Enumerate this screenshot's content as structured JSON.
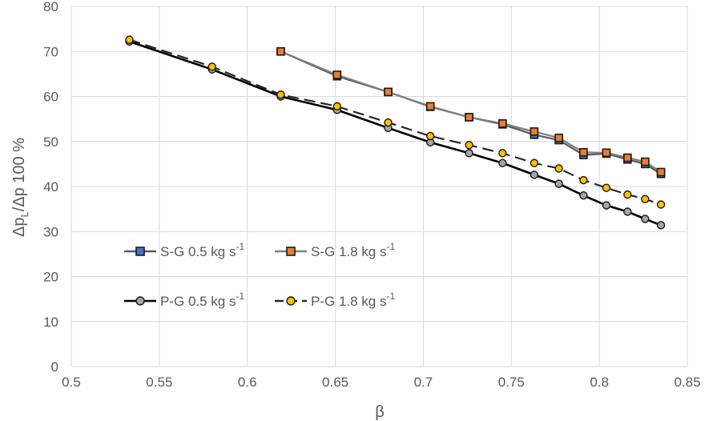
{
  "chart_data": {
    "type": "line",
    "xlabel": "β",
    "ylabel_parts": [
      "Δp",
      "L",
      "/Δp 100 %"
    ],
    "xlim": [
      0.5,
      0.85
    ],
    "ylim": [
      0,
      80
    ],
    "xticks": [
      0.5,
      0.55,
      0.6,
      0.65,
      0.7,
      0.75,
      0.8,
      0.85
    ],
    "xtick_labels": [
      "0.5",
      "0.55",
      "0.6",
      "0.65",
      "0.7",
      "0.75",
      "0.8",
      "0.85"
    ],
    "yticks": [
      0,
      10,
      20,
      30,
      40,
      50,
      60,
      70,
      80
    ],
    "ytick_labels": [
      "0",
      "10",
      "20",
      "30",
      "40",
      "50",
      "60",
      "70",
      "80"
    ],
    "grid": true,
    "legend_position": "lower-left",
    "series": [
      {
        "name": "S-G 0.5 kg s",
        "name_sup": "-1",
        "line_color": "#595959",
        "marker_fill": "#4472c4",
        "marker": "square",
        "dashed": false,
        "x": [
          0.619,
          0.651,
          0.68,
          0.704,
          0.726,
          0.745,
          0.763,
          0.777,
          0.791,
          0.804,
          0.816,
          0.826,
          0.835
        ],
        "y": [
          70,
          64.5,
          61,
          57.7,
          55.4,
          53.8,
          51.5,
          50.3,
          47,
          47.3,
          46,
          45,
          42.8
        ]
      },
      {
        "name": "S-G 1.8 kg  s",
        "name_sup": "-1",
        "line_color": "#7f7f7f",
        "marker_fill": "#ed7d31",
        "marker": "square",
        "dashed": false,
        "x": [
          0.619,
          0.651,
          0.68,
          0.704,
          0.726,
          0.745,
          0.763,
          0.777,
          0.791,
          0.804,
          0.816,
          0.826,
          0.835
        ],
        "y": [
          70,
          64.8,
          61,
          57.8,
          55.4,
          54,
          52.2,
          50.8,
          47.6,
          47.5,
          46.4,
          45.5,
          43.2
        ]
      },
      {
        "name": "P-G 0.5 kg s",
        "name_sup": "-1",
        "line_color": "#000000",
        "marker_fill": "#a6a6a6",
        "marker": "circle",
        "dashed": false,
        "x": [
          0.533,
          0.58,
          0.619,
          0.651,
          0.68,
          0.704,
          0.726,
          0.745,
          0.763,
          0.777,
          0.791,
          0.804,
          0.816,
          0.826,
          0.835
        ],
        "y": [
          72.2,
          66,
          60,
          57,
          53,
          49.8,
          47.4,
          45.2,
          42.6,
          40.6,
          38,
          35.8,
          34.4,
          32.8,
          31.4
        ]
      },
      {
        "name": "P-G 1.8 kg  s",
        "name_sup": "-1",
        "line_color": "#262626",
        "marker_fill": "#ffc000",
        "marker": "circle",
        "dashed": true,
        "x": [
          0.533,
          0.58,
          0.619,
          0.651,
          0.68,
          0.704,
          0.726,
          0.745,
          0.763,
          0.777,
          0.791,
          0.804,
          0.816,
          0.826,
          0.835
        ],
        "y": [
          72.6,
          66.6,
          60.4,
          57.8,
          54.2,
          51.2,
          49.2,
          47.4,
          45.2,
          44,
          41.4,
          39.7,
          38.2,
          37.2,
          36
        ]
      }
    ]
  }
}
